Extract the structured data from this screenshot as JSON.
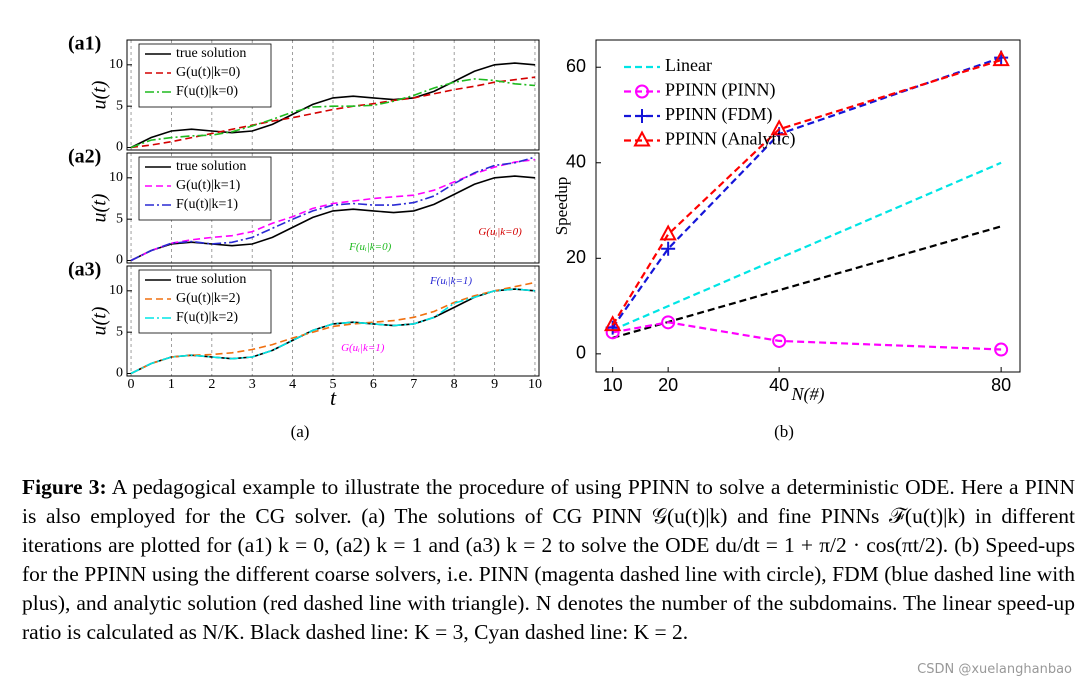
{
  "chart_data": [
    {
      "type": "line",
      "title": "(a1)",
      "ylabel": "u(t)",
      "x": [
        0,
        0.5,
        1,
        1.5,
        2,
        2.5,
        3,
        3.5,
        4,
        4.5,
        5,
        5.5,
        6,
        6.5,
        7,
        7.5,
        8,
        8.5,
        9,
        9.5,
        10
      ],
      "xlim": [
        -0.1,
        10.1
      ],
      "xticks": [
        0,
        1,
        2,
        3,
        4,
        5,
        6,
        7,
        8,
        9,
        10
      ],
      "ylim": [
        -0.3,
        13
      ],
      "yticks": [
        0,
        5,
        10
      ],
      "xgrid": true,
      "legend": "upper-left",
      "series": [
        {
          "name": "true solution",
          "color": "#000000",
          "dash": "solid",
          "values": [
            0,
            1.21,
            2,
            2.21,
            2,
            1.79,
            2,
            2.79,
            4,
            5.21,
            6,
            6.21,
            6,
            5.79,
            6,
            6.79,
            8,
            9.21,
            10,
            10.21,
            10
          ]
        },
        {
          "name": "G(u(t)|k=0)",
          "color": "#d40000",
          "dash": "dash",
          "values": [
            0,
            0.3,
            0.7,
            1.2,
            1.7,
            2.2,
            2.7,
            3.2,
            3.6,
            4.1,
            4.6,
            5.0,
            5.3,
            5.7,
            6.0,
            6.5,
            7.0,
            7.4,
            7.9,
            8.2,
            8.5
          ]
        },
        {
          "name": "F(u(t)|k=0)",
          "color": "#1fba1f",
          "dash": "dashdot",
          "values": [
            0,
            0.9,
            1.2,
            1.4,
            1.5,
            1.9,
            2.6,
            3.4,
            4.3,
            4.9,
            5.0,
            5.0,
            5.1,
            5.6,
            6.3,
            7.2,
            7.9,
            8.3,
            8.1,
            7.7,
            7.5
          ]
        }
      ]
    },
    {
      "type": "line",
      "title": "(a2)",
      "ylabel": "u(t)",
      "x": [
        0,
        0.5,
        1,
        1.5,
        2,
        2.5,
        3,
        3.5,
        4,
        4.5,
        5,
        5.5,
        6,
        6.5,
        7,
        7.5,
        8,
        8.5,
        9,
        9.5,
        10
      ],
      "xlim": [
        -0.1,
        10.1
      ],
      "xticks": [
        0,
        1,
        2,
        3,
        4,
        5,
        6,
        7,
        8,
        9,
        10
      ],
      "ylim": [
        -0.3,
        13
      ],
      "yticks": [
        0,
        5,
        10
      ],
      "xgrid": true,
      "legend": "upper-left",
      "annotations": [
        "F(uᵢ|k=0)",
        "G(uᵢ|k=0)"
      ],
      "series": [
        {
          "name": "true solution",
          "color": "#000000",
          "dash": "solid",
          "values": [
            0,
            1.21,
            2,
            2.21,
            2,
            1.79,
            2,
            2.79,
            4,
            5.21,
            6,
            6.21,
            6,
            5.79,
            6,
            6.79,
            8,
            9.21,
            10,
            10.21,
            10
          ]
        },
        {
          "name": "G(u(t)|k=1)",
          "color": "#ff00ff",
          "dash": "dash",
          "values": [
            0,
            1.2,
            2.1,
            2.5,
            2.8,
            3.0,
            3.5,
            4.5,
            5.3,
            6.3,
            6.9,
            7.2,
            7.5,
            7.7,
            7.9,
            8.5,
            9.5,
            10.5,
            11.3,
            11.9,
            12.2
          ]
        },
        {
          "name": "F(u(t)|k=1)",
          "color": "#2a2ad4",
          "dash": "dashdot",
          "values": [
            0,
            1.2,
            2.1,
            2.3,
            2.0,
            2.2,
            2.8,
            3.9,
            5.0,
            6.0,
            6.7,
            6.9,
            6.7,
            6.7,
            7.0,
            7.8,
            9.3,
            10.6,
            11.5,
            11.8,
            12.5
          ]
        }
      ]
    },
    {
      "type": "line",
      "title": "(a3)",
      "ylabel": "u(t)",
      "xlabel": "t",
      "x": [
        0,
        0.5,
        1,
        1.5,
        2,
        2.5,
        3,
        3.5,
        4,
        4.5,
        5,
        5.5,
        6,
        6.5,
        7,
        7.5,
        8,
        8.5,
        9,
        9.5,
        10
      ],
      "xlim": [
        -0.1,
        10.1
      ],
      "xticks": [
        0,
        1,
        2,
        3,
        4,
        5,
        6,
        7,
        8,
        9,
        10
      ],
      "ylim": [
        -0.3,
        13
      ],
      "yticks": [
        0,
        5,
        10
      ],
      "xgrid": true,
      "legend": "upper-left",
      "annotations": [
        "G(uᵢ|k=1)",
        "F(uᵢ|k=1)"
      ],
      "series": [
        {
          "name": "true solution",
          "color": "#000000",
          "dash": "solid",
          "values": [
            0,
            1.21,
            2,
            2.21,
            2,
            1.79,
            2,
            2.79,
            4,
            5.21,
            6,
            6.21,
            6,
            5.79,
            6,
            6.79,
            8,
            9.21,
            10,
            10.21,
            10
          ]
        },
        {
          "name": "G(u(t)|k=2)",
          "color": "#f07010",
          "dash": "dash",
          "values": [
            0,
            1.2,
            2.0,
            2.2,
            2.3,
            2.5,
            2.9,
            3.5,
            4.3,
            5.0,
            5.7,
            6.0,
            6.2,
            6.4,
            6.8,
            7.5,
            8.6,
            9.4,
            10.0,
            10.5,
            11.0
          ]
        },
        {
          "name": "F(u(t)|k=2)",
          "color": "#00e5e5",
          "dash": "dashdot",
          "values": [
            0,
            1.21,
            2,
            2.21,
            2,
            1.79,
            2,
            2.79,
            4,
            5.21,
            6,
            6.21,
            6,
            5.79,
            6,
            6.79,
            8.5,
            9.21,
            10,
            10.21,
            10
          ]
        }
      ]
    },
    {
      "type": "line",
      "xlabel": "N(#)",
      "ylabel": "Speedup",
      "x": [
        10,
        20,
        40,
        80
      ],
      "xlim": [
        7,
        83.4
      ],
      "xticks": [
        10,
        20,
        40,
        80
      ],
      "ylim": [
        -3.8,
        65.7
      ],
      "yticks": [
        0,
        20,
        40,
        60
      ],
      "legend": "upper-left",
      "series": [
        {
          "name": "Linear",
          "color": "#00e5e5",
          "dash": "dash",
          "values": [
            5,
            10,
            20,
            40
          ]
        },
        {
          "color": "#000000",
          "dash": "dash",
          "values": [
            3.33,
            6.67,
            13.33,
            26.67
          ]
        },
        {
          "name": "PPINN (PINN)",
          "color": "#ff00ff",
          "dash": "dash",
          "marker": "circle",
          "values": [
            4.5,
            6.6,
            2.7,
            0.9
          ]
        },
        {
          "name": "PPINN (FDM)",
          "color": "#1515d8",
          "dash": "dash",
          "marker": "plus",
          "values": [
            5.5,
            22,
            46,
            62
          ]
        },
        {
          "name": "PPINN (Analytic)",
          "color": "#ff0000",
          "dash": "dash",
          "marker": "triangle",
          "values": [
            6,
            25,
            47,
            61.5
          ]
        }
      ]
    }
  ],
  "subfigure_labels": [
    "(a)",
    "(b)"
  ],
  "caption": {
    "label": "Figure 3:",
    "text": "A pedagogical example to illustrate the procedure of using PPINN to solve a deterministic ODE. Here a PINN is also employed for the CG solver. (a) The solutions of CG PINN 𝒢(u(t)|k) and fine PINNs ℱ(u(t)|k) in different iterations are plotted for (a1) k = 0, (a2) k = 1 and (a3) k = 2 to solve the ODE du/dt = 1 + π/2 · cos(πt/2). (b) Speed-ups for the PPINN using the different coarse solvers, i.e. PINN (magenta dashed line with circle), FDM (blue dashed line with plus), and analytic solution (red dashed line with triangle). N denotes the number of the subdomains. The linear speed-up ratio is calculated as N/K. Black dashed line: K = 3, Cyan dashed line: K = 2."
  },
  "watermark": "CSDN @xuelanghanbao"
}
